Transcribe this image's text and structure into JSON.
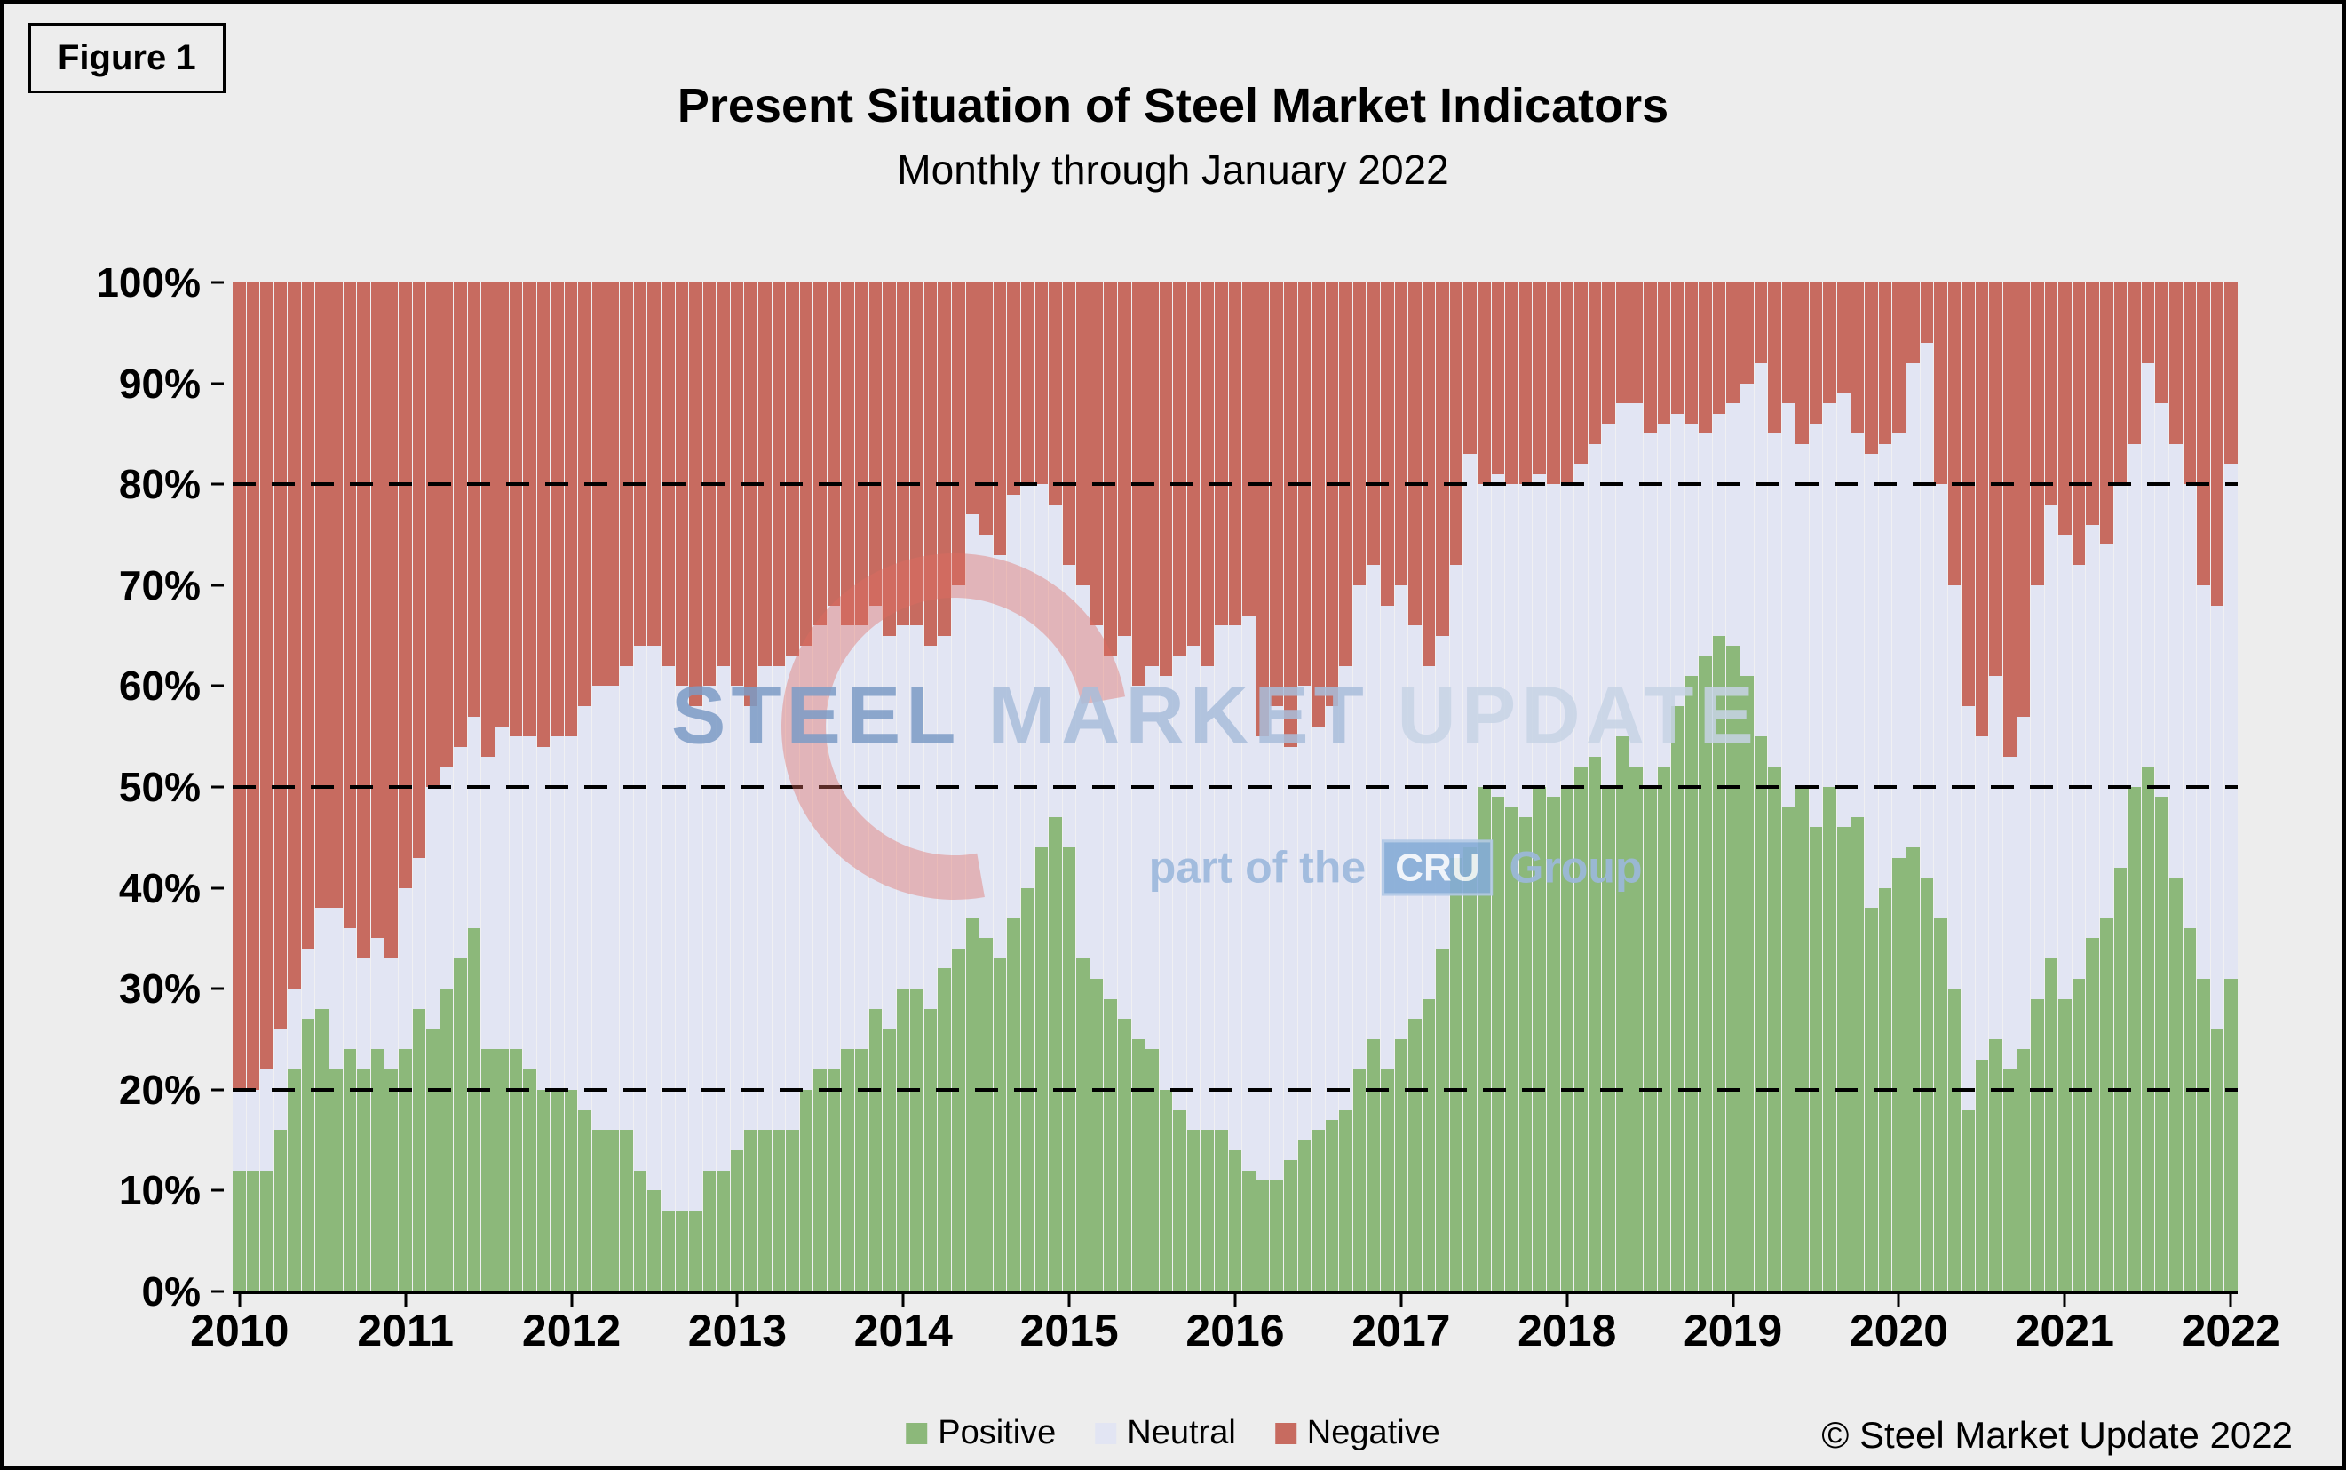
{
  "figure_label": "Figure 1",
  "title": "Present Situation of Steel Market Indicators",
  "subtitle": "Monthly through January 2022",
  "copyright": "© Steel Market Update 2022",
  "watermark": {
    "word1": "STEEL",
    "word2": "MARKET",
    "word3": "UPDATE",
    "line2_prefix": "part of the",
    "line2_cru": "CRU",
    "line2_suffix": "Group"
  },
  "legend": [
    {
      "label": "Positive",
      "color": "#8cb87a"
    },
    {
      "label": "Neutral",
      "color": "#e2e5f3"
    },
    {
      "label": "Negative",
      "color": "#c76b60"
    }
  ],
  "chart_data": {
    "type": "bar",
    "stacked": true,
    "stack_total": 100,
    "title": "Present Situation of Steel Market Indicators",
    "subtitle": "Monthly through January 2022",
    "x_start": "2010-01",
    "x_end": "2022-01",
    "x_frequency": "monthly",
    "x_tick_labels": [
      "2010",
      "2011",
      "2012",
      "2013",
      "2014",
      "2015",
      "2016",
      "2017",
      "2018",
      "2019",
      "2020",
      "2021",
      "2022"
    ],
    "y_ticks": [
      "0%",
      "10%",
      "20%",
      "30%",
      "40%",
      "50%",
      "60%",
      "70%",
      "80%",
      "90%",
      "100%"
    ],
    "ylim": [
      0,
      100
    ],
    "dashed_reference_lines": [
      20,
      50,
      80
    ],
    "legend_position": "bottom",
    "grid": false,
    "series": [
      {
        "name": "Positive",
        "color": "#8cb87a",
        "values": [
          12,
          12,
          12,
          16,
          22,
          27,
          28,
          22,
          24,
          22,
          24,
          22,
          24,
          28,
          26,
          30,
          33,
          36,
          24,
          24,
          24,
          22,
          20,
          20,
          20,
          18,
          16,
          16,
          16,
          12,
          10,
          8,
          8,
          8,
          12,
          12,
          14,
          16,
          16,
          16,
          16,
          20,
          22,
          22,
          24,
          24,
          28,
          26,
          30,
          30,
          28,
          32,
          34,
          37,
          35,
          33,
          37,
          40,
          44,
          47,
          44,
          33,
          31,
          29,
          27,
          25,
          24,
          20,
          18,
          16,
          16,
          16,
          14,
          12,
          11,
          11,
          13,
          15,
          16,
          17,
          18,
          22,
          25,
          22,
          25,
          27,
          29,
          34,
          43,
          44,
          50,
          49,
          48,
          47,
          50,
          49,
          50,
          52,
          53,
          50,
          55,
          52,
          50,
          52,
          58,
          61,
          63,
          65,
          64,
          61,
          55,
          52,
          48,
          50,
          46,
          50,
          46,
          47,
          38,
          40,
          43,
          44,
          41,
          37,
          30,
          18,
          23,
          25,
          22,
          24,
          29,
          33,
          29,
          31,
          35,
          37,
          42,
          50,
          52,
          49,
          41,
          36,
          31,
          26,
          31
        ]
      },
      {
        "name": "Neutral",
        "color": "#e2e5f3",
        "values": [
          8,
          8,
          10,
          10,
          8,
          7,
          10,
          16,
          12,
          11,
          11,
          11,
          16,
          15,
          24,
          22,
          21,
          21,
          29,
          32,
          31,
          33,
          34,
          35,
          35,
          40,
          44,
          44,
          46,
          52,
          54,
          54,
          52,
          50,
          48,
          50,
          46,
          42,
          46,
          46,
          47,
          44,
          44,
          46,
          42,
          42,
          40,
          39,
          36,
          36,
          36,
          33,
          36,
          40,
          40,
          40,
          42,
          40,
          36,
          31,
          28,
          37,
          35,
          34,
          38,
          35,
          38,
          41,
          45,
          48,
          46,
          50,
          52,
          55,
          44,
          47,
          41,
          45,
          40,
          41,
          44,
          48,
          47,
          46,
          45,
          39,
          33,
          31,
          29,
          39,
          30,
          32,
          32,
          33,
          31,
          31,
          30,
          30,
          31,
          36,
          33,
          36,
          35,
          34,
          29,
          25,
          22,
          22,
          24,
          29,
          37,
          33,
          40,
          34,
          40,
          38,
          43,
          38,
          45,
          44,
          42,
          48,
          53,
          43,
          40,
          40,
          32,
          36,
          31,
          33,
          41,
          45,
          46,
          41,
          41,
          37,
          38,
          34,
          40,
          39,
          43,
          44,
          39,
          42,
          51
        ]
      },
      {
        "name": "Negative",
        "color": "#c76b60",
        "values": [
          80,
          80,
          78,
          74,
          70,
          66,
          62,
          62,
          64,
          67,
          65,
          67,
          60,
          57,
          50,
          48,
          46,
          43,
          47,
          44,
          45,
          45,
          46,
          45,
          45,
          42,
          40,
          40,
          38,
          36,
          36,
          38,
          40,
          42,
          40,
          38,
          40,
          42,
          38,
          38,
          37,
          36,
          34,
          32,
          34,
          34,
          32,
          35,
          34,
          34,
          36,
          35,
          30,
          23,
          25,
          27,
          21,
          20,
          20,
          22,
          28,
          30,
          34,
          37,
          35,
          40,
          38,
          39,
          37,
          36,
          38,
          34,
          34,
          33,
          45,
          42,
          46,
          40,
          44,
          42,
          38,
          30,
          28,
          32,
          30,
          34,
          38,
          35,
          28,
          17,
          20,
          19,
          20,
          20,
          19,
          20,
          20,
          18,
          16,
          14,
          12,
          12,
          15,
          14,
          13,
          14,
          15,
          13,
          12,
          10,
          8,
          15,
          12,
          16,
          14,
          12,
          11,
          15,
          17,
          16,
          15,
          8,
          6,
          20,
          30,
          42,
          45,
          39,
          47,
          43,
          30,
          22,
          25,
          28,
          24,
          26,
          20,
          16,
          8,
          12,
          16,
          20,
          30,
          32,
          18
        ]
      }
    ]
  }
}
